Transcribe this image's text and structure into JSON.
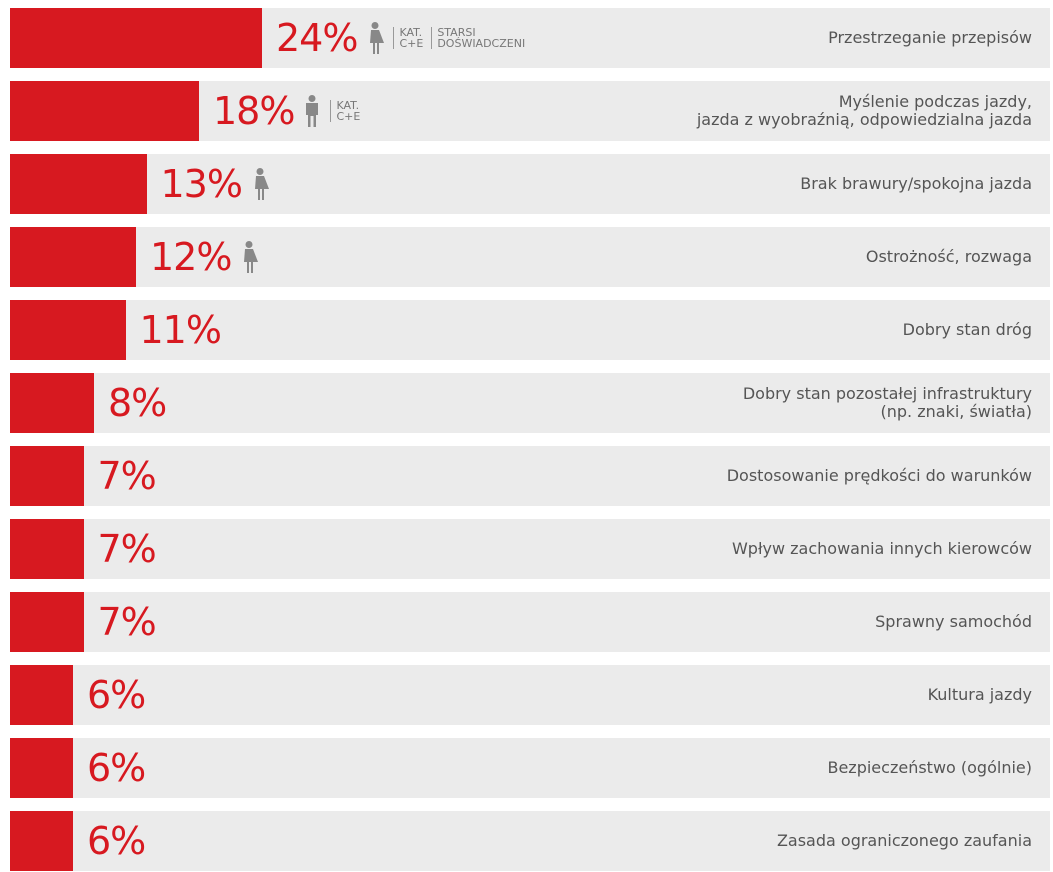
{
  "chart_data": {
    "type": "bar",
    "orientation": "horizontal",
    "color": "#d71920",
    "background_color": "#ebebeb",
    "categories": [
      "Przestrzeganie przepisów",
      "Myślenie podczas jazdy,\njazda z wyobraźnią, odpowiedzialna jazda",
      "Brak brawury/spokojna jazda",
      "Ostrożność, rozwaga",
      "Dobry stan dróg",
      "Dobry stan pozostałej infrastruktury\n(np. znaki, światła)",
      "Dostosowanie prędkości do warunków",
      "Wpływ zachowania innych kierowców",
      "Sprawny samochód",
      "Kultura jazdy",
      "Bezpieczeństwo (ogólnie)",
      "Zasada ograniczonego zaufania"
    ],
    "values": [
      24,
      18,
      13,
      12,
      11,
      8,
      7,
      7,
      7,
      6,
      6,
      6
    ],
    "value_labels": [
      "24%",
      "18%",
      "13%",
      "12%",
      "11%",
      "8%",
      "7%",
      "7%",
      "7%",
      "6%",
      "6%",
      "6%"
    ],
    "icons": [
      "female",
      "male",
      "female",
      "female",
      null,
      null,
      null,
      null,
      null,
      null,
      null,
      null
    ],
    "tags": [
      [
        "KAT.\nC+E",
        "STARSI\nDOŚWIADCZENI"
      ],
      [
        "KAT.\nC+E"
      ],
      [],
      [],
      [],
      [],
      [],
      [],
      [],
      [],
      [],
      []
    ]
  }
}
